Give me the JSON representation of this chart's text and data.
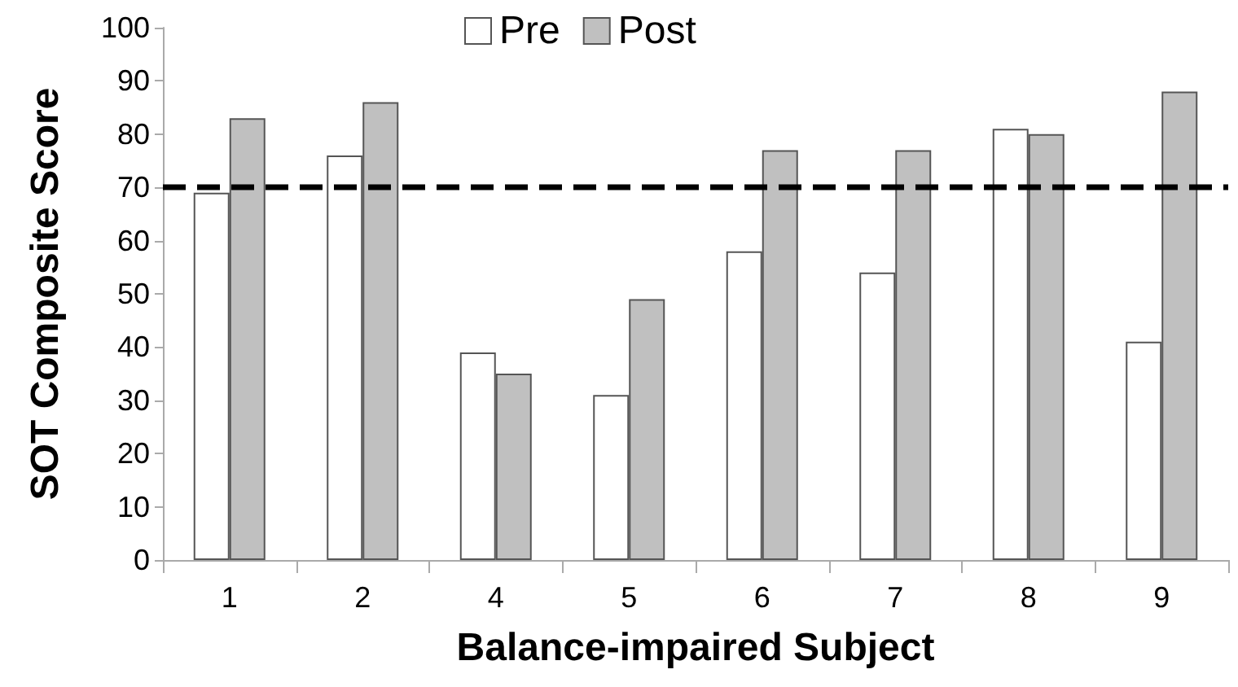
{
  "chart_data": {
    "type": "bar",
    "xlabel": "Balance-impaired Subject",
    "ylabel": "SOT Composite Score",
    "categories": [
      "1",
      "2",
      "4",
      "5",
      "6",
      "7",
      "8",
      "9"
    ],
    "series": [
      {
        "name": "Pre",
        "color": "#ffffff",
        "values": [
          69,
          76,
          39,
          31,
          58,
          54,
          81,
          41
        ]
      },
      {
        "name": "Post",
        "color": "#c0c0c0",
        "values": [
          83,
          86,
          35,
          49,
          77,
          77,
          80,
          88
        ]
      }
    ],
    "ylim": [
      0,
      100
    ],
    "yticks": [
      0,
      10,
      20,
      30,
      40,
      50,
      60,
      70,
      80,
      90,
      100
    ],
    "ref_lines": [
      {
        "axis": "y",
        "value": 70,
        "color": "#000000",
        "line_style": "dashed"
      }
    ],
    "grid": false,
    "legend": "top"
  }
}
